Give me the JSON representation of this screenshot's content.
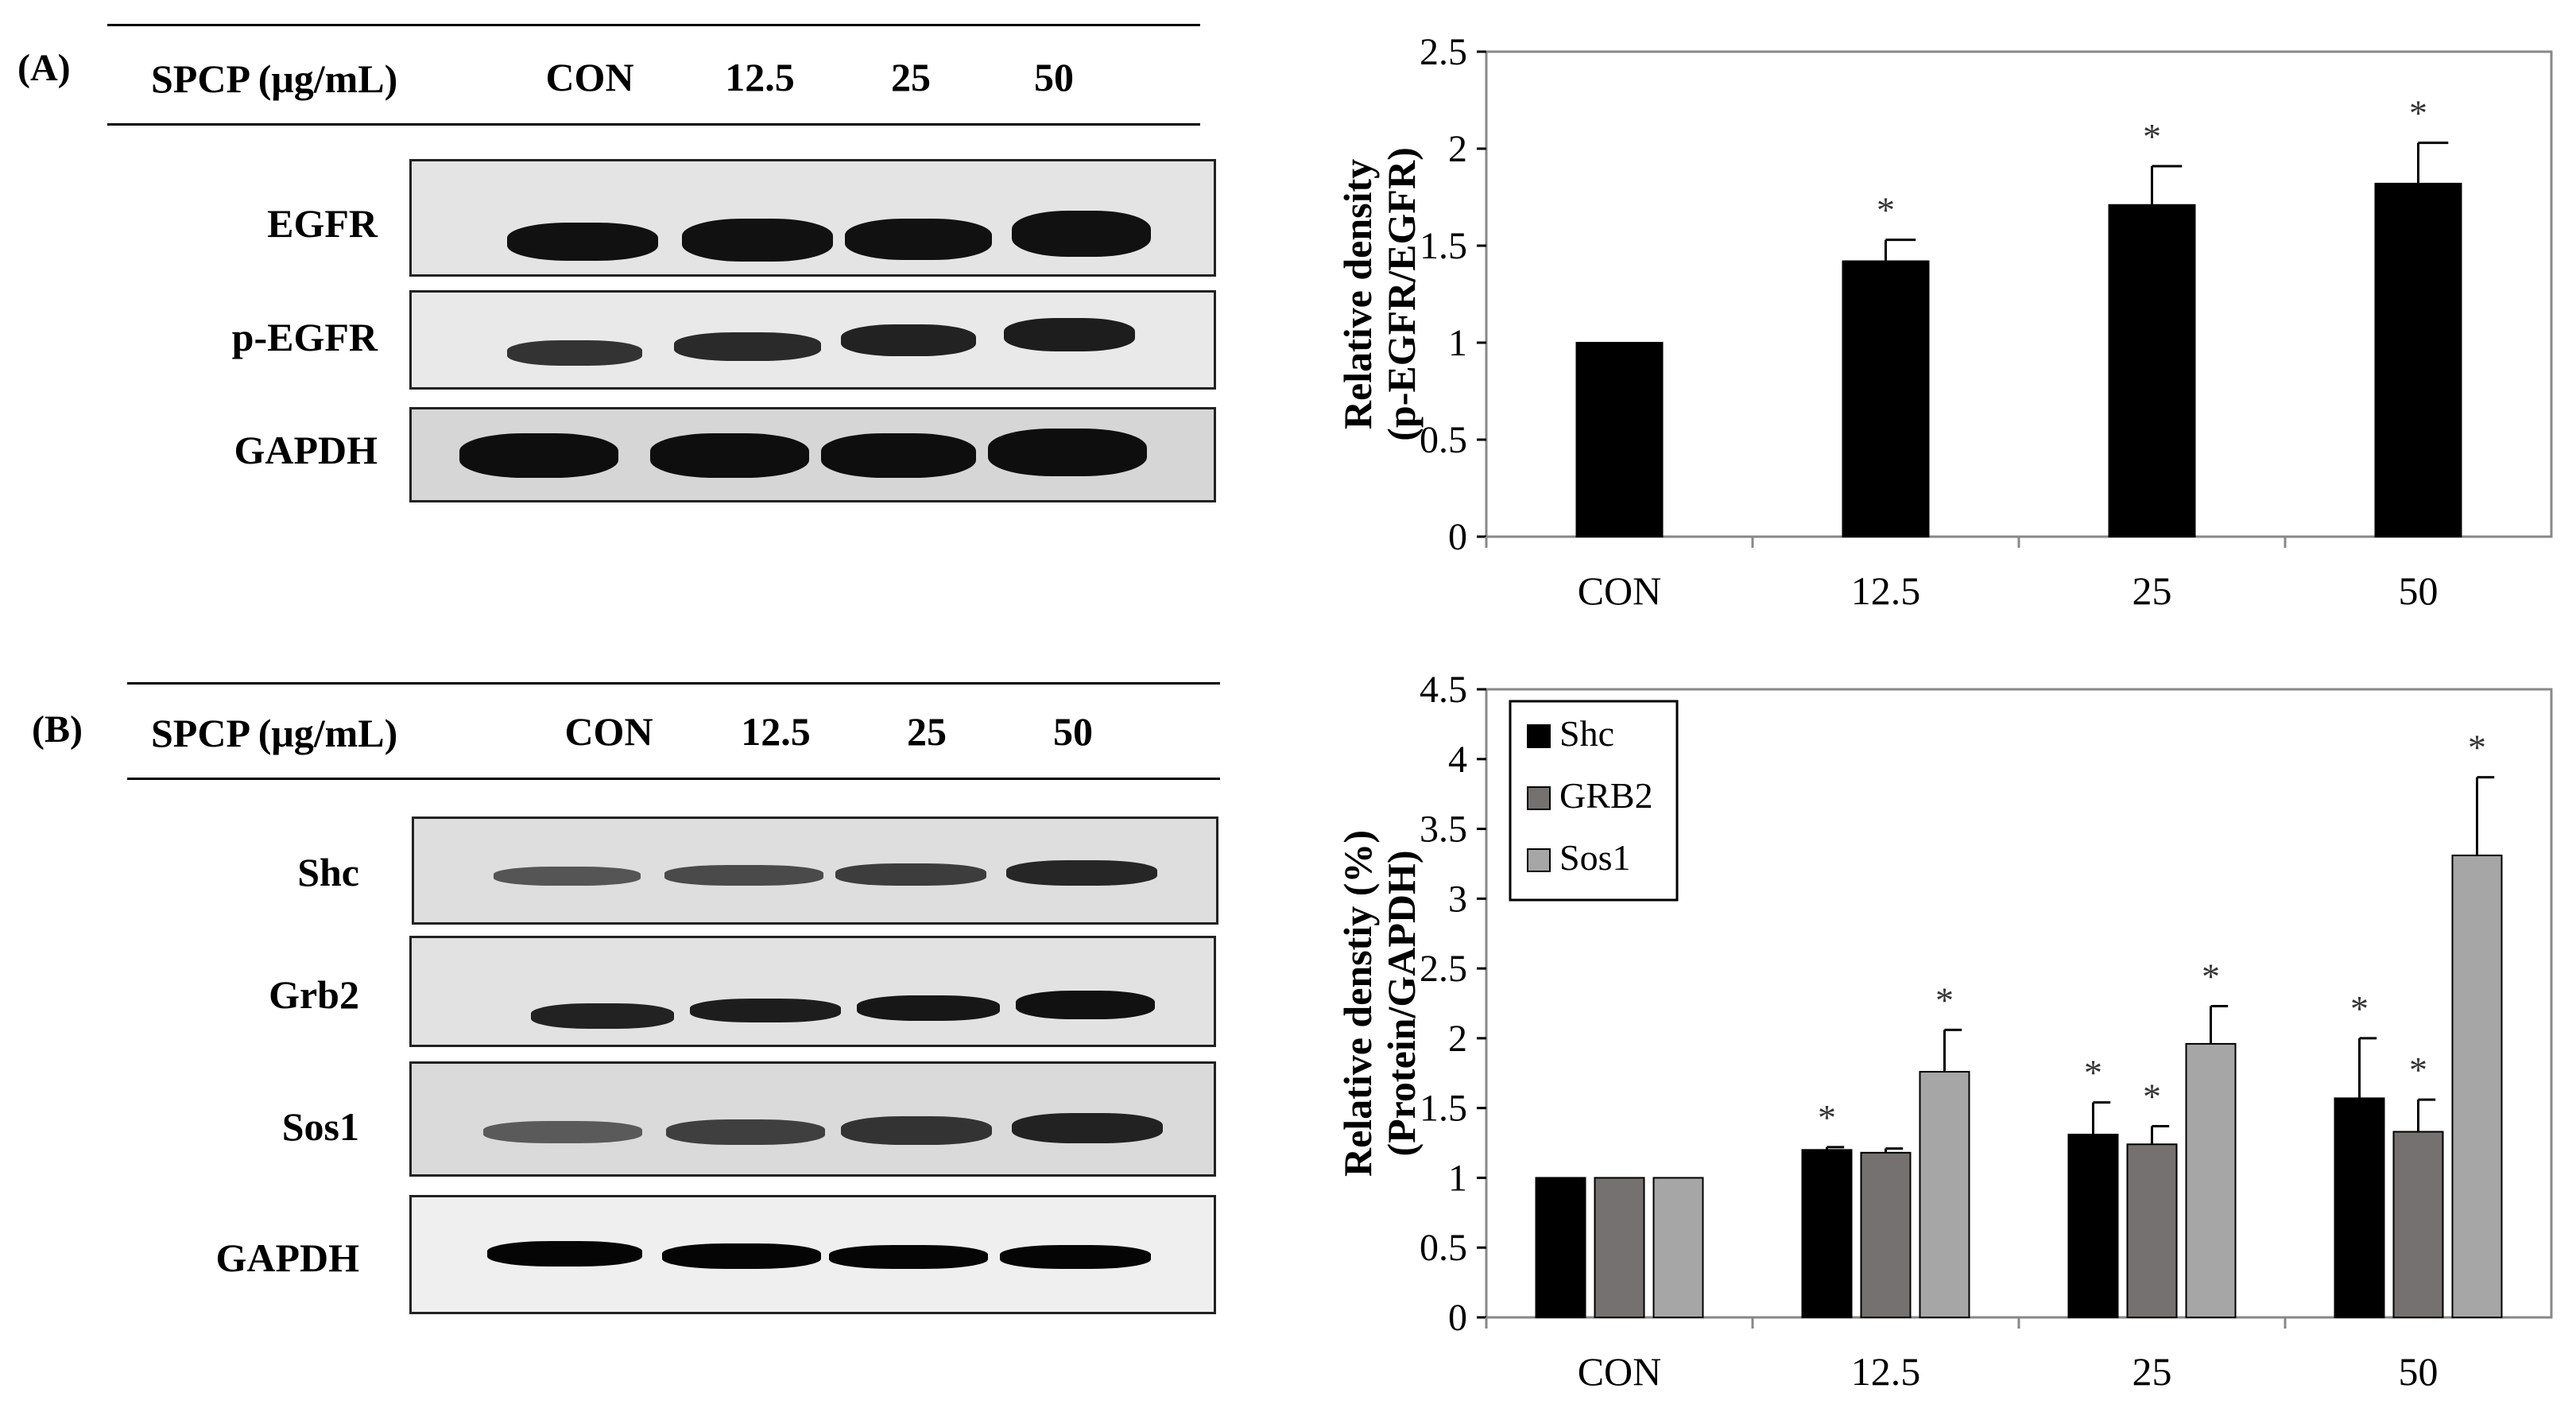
{
  "panel_a": {
    "label": "(A)",
    "header": {
      "treatment": "SPCP (μg/mL)",
      "lanes": [
        "CON",
        "12.5",
        "25",
        "50"
      ]
    },
    "blots": [
      {
        "name": "EGFR",
        "bg": "#e4e4e4"
      },
      {
        "name": "p-EGFR",
        "bg": "#e9e9e9"
      },
      {
        "name": "GAPDH",
        "bg": "#d6d6d6"
      }
    ]
  },
  "panel_b": {
    "label": "(B)",
    "header": {
      "treatment": "SPCP (μg/mL)",
      "lanes": [
        "CON",
        "12.5",
        "25",
        "50"
      ]
    },
    "blots": [
      {
        "name": "Shc",
        "bg": "#dedede"
      },
      {
        "name": "Grb2",
        "bg": "#e2e2e2"
      },
      {
        "name": "Sos1",
        "bg": "#dadada"
      },
      {
        "name": "GAPDH",
        "bg": "#efefef"
      }
    ]
  },
  "chart_data": [
    {
      "type": "bar",
      "ylabel_line1": "Relative density",
      "ylabel_line2": "(p-EGFR/EGFR)",
      "categories": [
        "CON",
        "12.5",
        "25",
        "50"
      ],
      "values": [
        1.0,
        1.42,
        1.71,
        1.82
      ],
      "errors": [
        0.0,
        0.11,
        0.2,
        0.21
      ],
      "significance": [
        "",
        "*",
        "*",
        "*"
      ],
      "ylim": [
        0,
        2.5
      ],
      "yticks": [
        "0",
        "0.5",
        "1",
        "1.5",
        "2",
        "2.5"
      ],
      "color": "#000000"
    },
    {
      "type": "bar",
      "ylabel_line1": "Relative denstiy (%)",
      "ylabel_line2": "(Protein/GAPDH)",
      "categories": [
        "CON",
        "12.5",
        "25",
        "50"
      ],
      "ylim": [
        0,
        4.5
      ],
      "yticks": [
        "0",
        "0.5",
        "1",
        "1.5",
        "2",
        "2.5",
        "3",
        "3.5",
        "4",
        "4.5"
      ],
      "legend_position": "top-left",
      "series": [
        {
          "name": "Shc",
          "color": "#000000",
          "values": [
            1.0,
            1.2,
            1.31,
            1.57
          ],
          "errors": [
            0.0,
            0.02,
            0.23,
            0.43
          ],
          "significance": [
            "",
            "*",
            "*",
            "*"
          ]
        },
        {
          "name": "GRB2",
          "color": "#767171",
          "values": [
            1.0,
            1.18,
            1.24,
            1.33
          ],
          "errors": [
            0.0,
            0.03,
            0.13,
            0.23
          ],
          "significance": [
            "",
            "",
            "*",
            "*"
          ]
        },
        {
          "name": "Sos1",
          "color": "#a6a6a6",
          "values": [
            1.0,
            1.76,
            1.96,
            3.31
          ],
          "errors": [
            0.0,
            0.3,
            0.27,
            0.56
          ],
          "significance": [
            "",
            "*",
            "*",
            "*"
          ]
        }
      ]
    }
  ]
}
